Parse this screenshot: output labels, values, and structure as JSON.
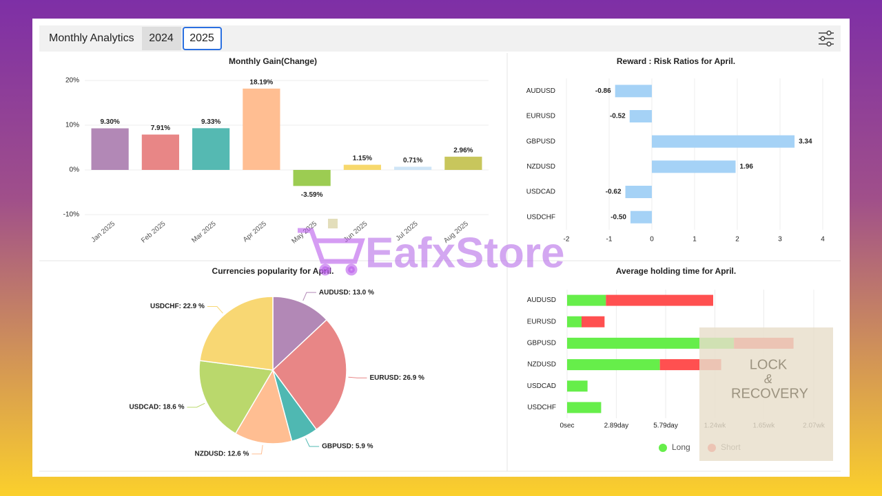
{
  "header": {
    "title": "Monthly Analytics",
    "tabs": [
      "2024",
      "2025"
    ]
  },
  "watermark": "EafxStore",
  "overlay": [
    "LOCK",
    "&",
    "RECOVERY"
  ],
  "chart_data": [
    {
      "type": "bar",
      "title": "Monthly Gain(Change)",
      "categories": [
        "Jan 2025",
        "Feb 2025",
        "Mar 2025",
        "Apr 2025",
        "May 2025",
        "Jun 2025",
        "Jul 2025",
        "Aug 2025"
      ],
      "values": [
        9.3,
        7.91,
        9.33,
        18.19,
        -3.59,
        1.15,
        0.71,
        2.96
      ],
      "value_labels": [
        "9.30%",
        "7.91%",
        "9.33%",
        "18.19%",
        "-3.59%",
        "1.15%",
        "0.71%",
        "2.96%"
      ],
      "colors": [
        "#b288b6",
        "#e88686",
        "#55b9b2",
        "#ffbe92",
        "#9ccc52",
        "#f7d86c",
        "#cfe5f7",
        "#c8c65c"
      ],
      "ylim": [
        -10,
        20
      ],
      "yticks": [
        {
          "value": -10,
          "label": "-10%"
        },
        {
          "value": 0,
          "label": "0%"
        },
        {
          "value": 10,
          "label": "10%"
        },
        {
          "value": 20,
          "label": "20%"
        }
      ],
      "grid": true
    },
    {
      "type": "hbar",
      "title": "Reward : Risk Ratios for April.",
      "categories": [
        "AUDUSD",
        "EURUSD",
        "GBPUSD",
        "NZDUSD",
        "USDCAD",
        "USDCHF"
      ],
      "values": [
        -0.86,
        -0.52,
        3.34,
        1.96,
        -0.62,
        -0.5
      ],
      "value_labels": [
        "-0.86",
        "-0.52",
        "3.34",
        "1.96",
        "-0.62",
        "-0.50"
      ],
      "color": "#a5d2f6",
      "xlim": [
        -2,
        4
      ],
      "xticks": [
        -2,
        -1,
        0,
        1,
        2,
        3,
        4
      ],
      "grid": true
    },
    {
      "type": "pie",
      "title": "Currencies popularity for April.",
      "values": [
        13.0,
        26.9,
        5.9,
        12.6,
        18.6,
        22.9
      ],
      "value_labels": [
        "AUDUSD: 13.0 %",
        "EURUSD: 26.9 %",
        "GBPUSD: 5.9 %",
        "NZDUSD: 12.6 %",
        "USDCAD: 18.6 %",
        "USDCHF: 22.9 %"
      ],
      "colors": [
        "#b288b6",
        "#e88686",
        "#4fb8b2",
        "#ffbe92",
        "#bad86c",
        "#f8d773"
      ]
    },
    {
      "type": "stacked_hbar",
      "title": "Average holding time for April.",
      "categories": [
        "AUDUSD",
        "EURUSD",
        "GBPUSD",
        "NZDUSD",
        "USDCAD",
        "USDCHF"
      ],
      "series": [
        {
          "name": "Long",
          "color": "#66ee4a",
          "values": [
            2.28,
            0.85,
            9.8,
            5.45,
            1.2,
            2.0
          ]
        },
        {
          "name": "Short",
          "color": "#ff5050",
          "values": [
            6.3,
            1.35,
            3.5,
            3.6,
            0,
            0
          ]
        }
      ],
      "xlim": [
        0,
        14.49
      ],
      "xticks": [
        {
          "value": 0,
          "label": "0sec"
        },
        {
          "value": 2.89,
          "label": "2.89day"
        },
        {
          "value": 5.79,
          "label": "5.79day"
        },
        {
          "value": 8.68,
          "label": "1.24wk"
        },
        {
          "value": 11.55,
          "label": "1.65wk"
        },
        {
          "value": 14.49,
          "label": "2.07wk"
        }
      ],
      "grid": true,
      "legend": "bottom"
    }
  ]
}
